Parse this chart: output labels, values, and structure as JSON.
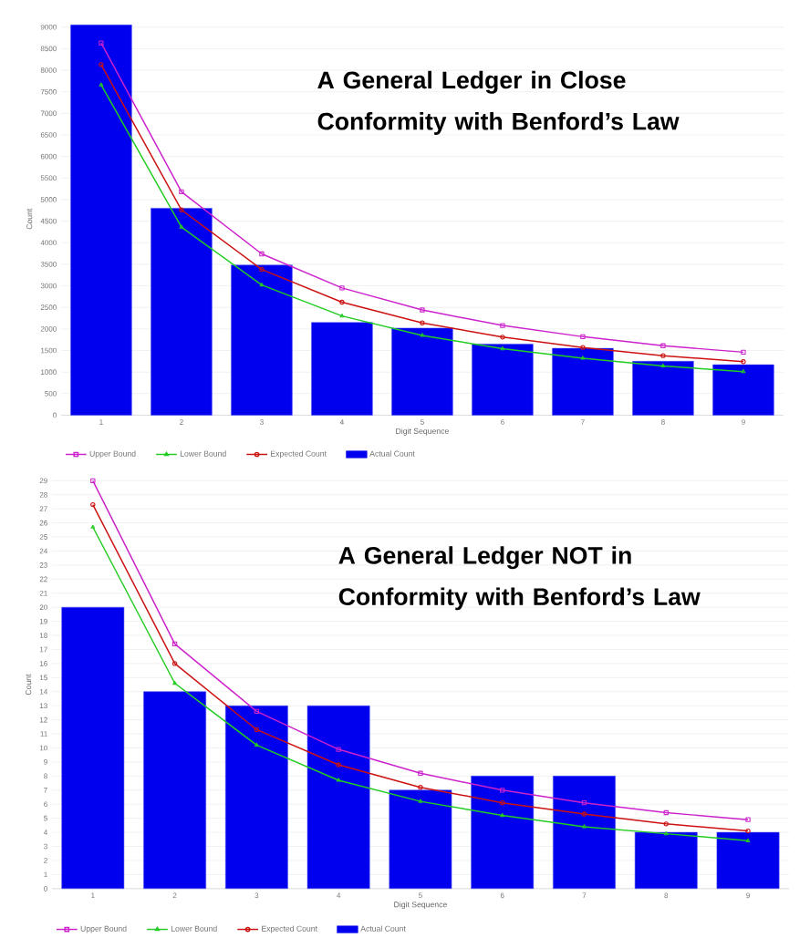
{
  "chart_data": [
    {
      "type": "bar",
      "title": "A General Ledger in Close Conformity with Benford’s Law",
      "xlabel": "Digit Sequence",
      "ylabel": "Count",
      "categories": [
        "1",
        "2",
        "3",
        "4",
        "5",
        "6",
        "7",
        "8",
        "9"
      ],
      "series": [
        {
          "name": "Upper Bound",
          "type": "line",
          "marker": "square",
          "color": "#cc22cc",
          "values": [
            8630,
            5180,
            3740,
            2950,
            2440,
            2080,
            1820,
            1610,
            1460
          ]
        },
        {
          "name": "Lower Bound",
          "type": "line",
          "marker": "triangle",
          "color": "#22cc22",
          "values": [
            7660,
            4360,
            3020,
            2300,
            1850,
            1540,
            1320,
            1140,
            1010
          ]
        },
        {
          "name": "Expected Count",
          "type": "line",
          "marker": "circle",
          "color": "#cc1111",
          "values": [
            8130,
            4760,
            3380,
            2620,
            2140,
            1810,
            1570,
            1380,
            1240
          ]
        },
        {
          "name": "Actual Count",
          "type": "bar",
          "color": "#0000ee",
          "values": [
            9050,
            4800,
            3480,
            2150,
            2020,
            1650,
            1550,
            1250,
            1170
          ]
        }
      ],
      "ylim": [
        0,
        9100
      ],
      "yticks": [
        0,
        500,
        1000,
        1500,
        2000,
        2500,
        3000,
        3500,
        4000,
        4500,
        5000,
        5500,
        6000,
        6500,
        7000,
        7500,
        8000,
        8500,
        9000
      ],
      "grid": "y",
      "legend": "bottom"
    },
    {
      "type": "bar",
      "title": "A General Ledger NOT in Conformity with Benford’s Law",
      "xlabel": "Digit Sequence",
      "ylabel": "Count",
      "categories": [
        "1",
        "2",
        "3",
        "4",
        "5",
        "6",
        "7",
        "8",
        "9"
      ],
      "series": [
        {
          "name": "Upper Bound",
          "type": "line",
          "marker": "square",
          "color": "#cc22cc",
          "values": [
            29.0,
            17.4,
            12.6,
            9.9,
            8.2,
            7.0,
            6.1,
            5.4,
            4.9
          ]
        },
        {
          "name": "Lower Bound",
          "type": "line",
          "marker": "triangle",
          "color": "#22cc22",
          "values": [
            25.7,
            14.6,
            10.2,
            7.7,
            6.2,
            5.2,
            4.4,
            3.9,
            3.4
          ]
        },
        {
          "name": "Expected Count",
          "type": "line",
          "marker": "circle",
          "color": "#cc1111",
          "values": [
            27.3,
            16.0,
            11.3,
            8.8,
            7.2,
            6.1,
            5.3,
            4.6,
            4.1
          ]
        },
        {
          "name": "Actual Count",
          "type": "bar",
          "color": "#0000ee",
          "values": [
            20,
            14,
            13,
            13,
            7,
            8,
            8,
            4,
            4
          ]
        }
      ],
      "ylim": [
        0,
        29
      ],
      "yticks": [
        0,
        1,
        2,
        3,
        4,
        5,
        6,
        7,
        8,
        9,
        10,
        11,
        12,
        13,
        14,
        15,
        16,
        17,
        18,
        19,
        20,
        21,
        22,
        23,
        24,
        25,
        26,
        27,
        28,
        29
      ],
      "grid": "y",
      "legend": "bottom"
    }
  ]
}
